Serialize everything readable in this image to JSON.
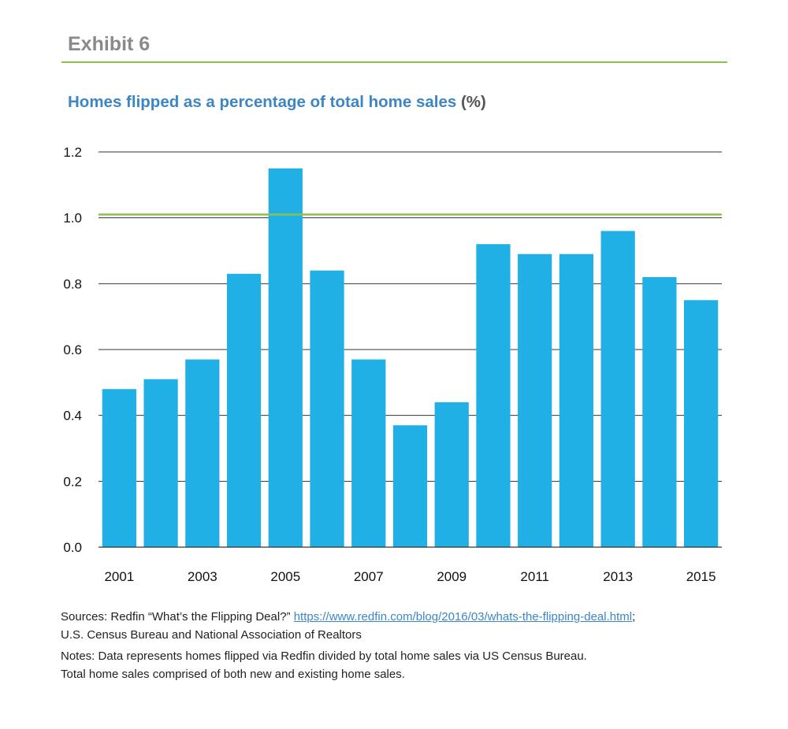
{
  "header": {
    "exhibit_label": "Exhibit 6"
  },
  "chart_title": {
    "main": "Homes flipped as a percentage of total home sales",
    "unit": "(%)"
  },
  "colors": {
    "bar": "#21b0e6",
    "accent_line": "#8cc14e",
    "title": "#3d86c6",
    "grid": "#333333"
  },
  "chart_data": {
    "type": "bar",
    "categories": [
      "2001",
      "2002",
      "2003",
      "2004",
      "2005",
      "2006",
      "2007",
      "2008",
      "2009",
      "2010",
      "2011",
      "2012",
      "2013",
      "2014",
      "2015"
    ],
    "values": [
      0.48,
      0.51,
      0.57,
      0.83,
      1.15,
      0.84,
      0.57,
      0.37,
      0.44,
      0.92,
      0.89,
      0.89,
      0.96,
      0.82,
      0.75
    ],
    "x_tick_labels": [
      "2001",
      "2003",
      "2005",
      "2007",
      "2009",
      "2011",
      "2013",
      "2015"
    ],
    "y_ticks": [
      "0.0",
      "0.2",
      "0.4",
      "0.6",
      "0.8",
      "1.0",
      "1.2"
    ],
    "ylim": [
      0,
      1.2
    ],
    "grid": true,
    "reference_line": 1.01,
    "title": "Homes flipped as a percentage of total home sales (%)",
    "xlabel": "",
    "ylabel": ""
  },
  "footer": {
    "sources_prefix": "Sources: Redfin “What’s the Flipping Deal?” ",
    "sources_link": "https://www.redfin.com/blog/2016/03/whats-the-flipping-deal.html",
    "sources_suffix": ";",
    "sources_line2": "U.S. Census Bureau and National Association of Realtors",
    "notes_line1": "Notes: Data represents homes flipped via Redfin divided by total home sales via US Census Bureau.",
    "notes_line2": "Total home sales comprised of both new and existing home sales."
  }
}
